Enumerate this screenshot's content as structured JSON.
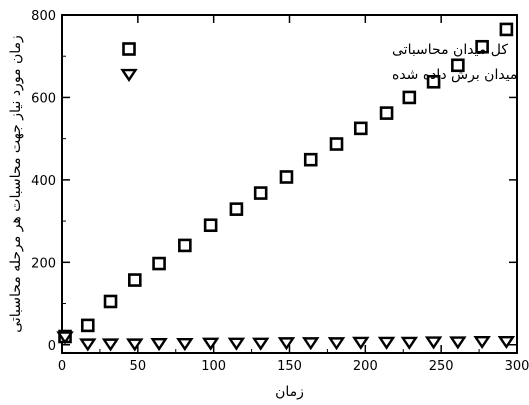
{
  "chart_data": {
    "type": "scatter",
    "xlabel": "زمان",
    "ylabel": "زمان مورد نیاز جهت محاسبات هر مرحله محاسباتی",
    "xlim": [
      0,
      300
    ],
    "ylim": [
      -20,
      800
    ],
    "xticks": [
      0,
      50,
      100,
      150,
      200,
      250,
      300
    ],
    "yticks": [
      0,
      200,
      400,
      600,
      800
    ],
    "grid": false,
    "legend_position": "top-left",
    "series": [
      {
        "name": "کل میدان محاسباتی",
        "marker": "square",
        "color": "#000000",
        "x": [
          2,
          17,
          32,
          48,
          64,
          81,
          98,
          115,
          131,
          148,
          164,
          181,
          197,
          214,
          229,
          245,
          261,
          277,
          293
        ],
        "y": [
          20,
          47,
          105,
          157,
          197,
          241,
          290,
          329,
          368,
          407,
          449,
          487,
          525,
          562,
          600,
          638,
          678,
          723,
          765
        ]
      },
      {
        "name": "میدان برش داده شده",
        "marker": "triangle-down",
        "color": "#000000",
        "x": [
          2,
          17,
          32,
          48,
          64,
          81,
          98,
          115,
          131,
          148,
          164,
          181,
          197,
          214,
          229,
          245,
          261,
          277,
          293
        ],
        "y": [
          20,
          3,
          3,
          3,
          4,
          4,
          5,
          5,
          5,
          6,
          6,
          6,
          7,
          7,
          7,
          8,
          8,
          9,
          9
        ]
      }
    ]
  }
}
